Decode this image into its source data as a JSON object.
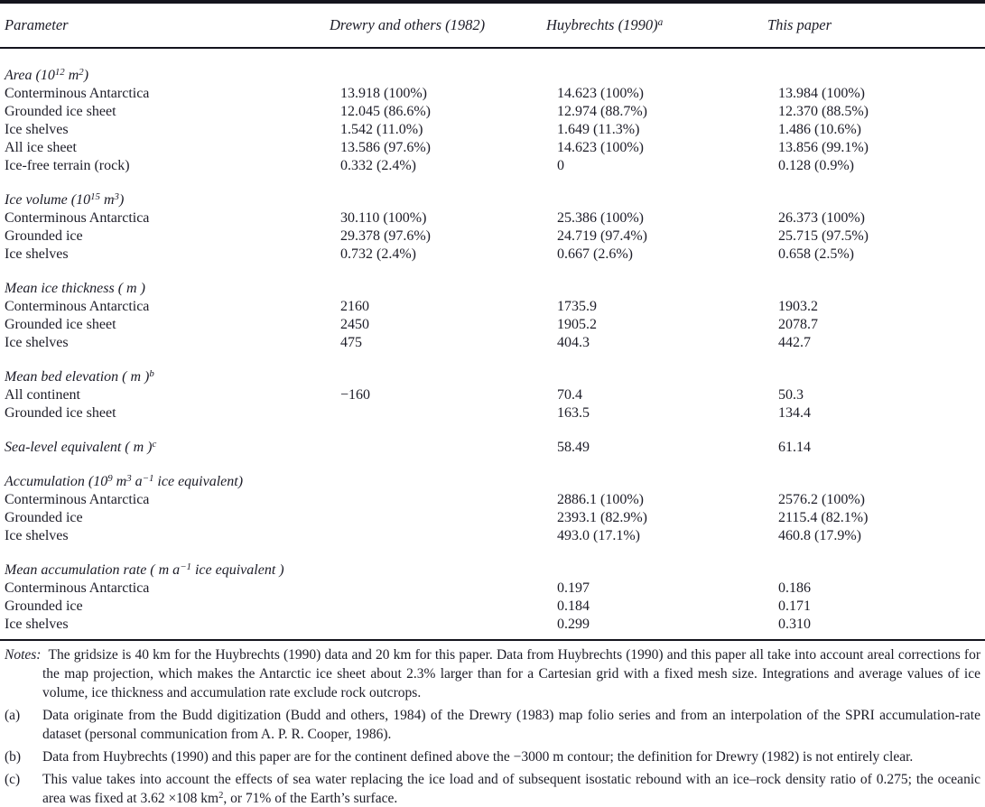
{
  "table": {
    "header": {
      "columns": [
        {
          "label": "Parameter"
        },
        {
          "label": "Drewry and others (1982)"
        },
        {
          "label": "Huybrechts (1990)^{a}"
        },
        {
          "label": "This paper"
        }
      ]
    },
    "sections": [
      {
        "title": "Area (10^{12} m^{2})",
        "rows": [
          {
            "label": "Conterminous Antarctica",
            "values": [
              "13.918 (100%)",
              "14.623 (100%)",
              "13.984 (100%)"
            ]
          },
          {
            "label": "Grounded ice sheet",
            "values": [
              "12.045 (86.6%)",
              "12.974 (88.7%)",
              "12.370 (88.5%)"
            ]
          },
          {
            "label": "Ice shelves",
            "values": [
              "1.542 (11.0%)",
              "1.649 (11.3%)",
              "1.486 (10.6%)"
            ]
          },
          {
            "label": "All ice sheet",
            "values": [
              "13.586 (97.6%)",
              "14.623 (100%)",
              "13.856 (99.1%)"
            ]
          },
          {
            "label": "Ice-free terrain (rock)",
            "values": [
              "0.332 (2.4%)",
              "0",
              "0.128 (0.9%)"
            ]
          }
        ]
      },
      {
        "title": "Ice volume (10^{15} m^{3})",
        "rows": [
          {
            "label": "Conterminous Antarctica",
            "values": [
              "30.110 (100%)",
              "25.386 (100%)",
              "26.373 (100%)"
            ]
          },
          {
            "label": "Grounded ice",
            "values": [
              "29.378 (97.6%)",
              "24.719 (97.4%)",
              "25.715 (97.5%)"
            ]
          },
          {
            "label": "Ice shelves",
            "values": [
              "0.732 (2.4%)",
              "0.667 (2.6%)",
              "0.658 (2.5%)"
            ]
          }
        ]
      },
      {
        "title": "Mean ice thickness ( m )",
        "rows": [
          {
            "label": "Conterminous Antarctica",
            "values": [
              "2160",
              "1735.9",
              "1903.2"
            ]
          },
          {
            "label": "Grounded ice sheet",
            "values": [
              "2450",
              "1905.2",
              "2078.7"
            ]
          },
          {
            "label": "Ice shelves",
            "values": [
              "475",
              "404.3",
              "442.7"
            ]
          }
        ]
      },
      {
        "title": "Mean bed elevation ( m )^{b}",
        "rows": [
          {
            "label": "All continent",
            "values": [
              "−160",
              "70.4",
              "50.3"
            ]
          },
          {
            "label": "Grounded ice sheet",
            "values": [
              "",
              "163.5",
              "134.4"
            ]
          }
        ]
      },
      {
        "title": "Sea-level equivalent ( m )^{c}",
        "inline_values": [
          "",
          "58.49",
          "61.14"
        ],
        "rows": []
      },
      {
        "title": "Accumulation (10^{9} m^{3} a^{−1} ice equivalent)",
        "rows": [
          {
            "label": "Conterminous Antarctica",
            "values": [
              "",
              "2886.1 (100%)",
              "2576.2 (100%)"
            ]
          },
          {
            "label": "Grounded ice",
            "values": [
              "",
              "2393.1 (82.9%)",
              "2115.4 (82.1%)"
            ]
          },
          {
            "label": "Ice shelves",
            "values": [
              "",
              "493.0 (17.1%)",
              "460.8 (17.9%)"
            ]
          }
        ]
      },
      {
        "title": "Mean accumulation rate ( m a^{−1} ice equivalent )",
        "rows": [
          {
            "label": "Conterminous Antarctica",
            "values": [
              "",
              "0.197",
              "0.186"
            ]
          },
          {
            "label": "Grounded ice",
            "values": [
              "",
              "0.184",
              "0.171"
            ]
          },
          {
            "label": "Ice shelves",
            "values": [
              "",
              "0.299",
              "0.310"
            ]
          }
        ]
      }
    ]
  },
  "notes": {
    "label": "Notes:",
    "text": "The gridsize is 40 km for the Huybrechts (1990) data and 20 km for this paper. Data from Huybrechts (1990) and this paper all take into account areal corrections for the map projection, which makes the Antarctic ice sheet about 2.3% larger than for a Cartesian grid with a fixed mesh size. Integrations and average values of ice volume, ice thickness and accumulation rate exclude rock outcrops.",
    "footnotes": [
      {
        "marker": "(a)",
        "text": "Data originate from the Budd digitization (Budd and others, 1984) of the Drewry (1983) map folio series and from an interpolation of the SPRI accumulation-rate dataset (personal communication from A. P. R. Cooper, 1986)."
      },
      {
        "marker": "(b)",
        "text": "Data from Huybrechts (1990) and this paper are for the continent defined above the −3000 m contour; the definition for Drewry (1982) is not entirely clear."
      },
      {
        "marker": "(c)",
        "text": "This value takes into account the effects of sea water replacing the ice load and of subsequent isostatic rebound with an ice–rock density ratio of 0.275; the oceanic area was fixed at 3.62 ×108 km^{2}, or 71% of the Earth’s surface."
      }
    ]
  }
}
